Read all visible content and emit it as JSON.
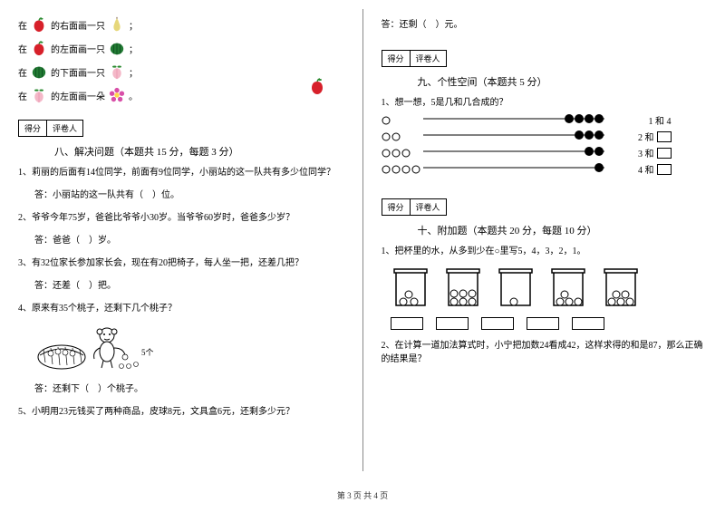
{
  "footer": "第 3 页 共 4 页",
  "scorebox": {
    "c1": "得分",
    "c2": "评卷人"
  },
  "leftCol": {
    "draw": {
      "prefix": "在",
      "suffix1": "的右面画一只",
      "suffix2": "的左面画一只",
      "suffix3": "的下面画一只",
      "suffix4": "的左面画一朵",
      "semicolon": "；",
      "period": "。"
    },
    "sec8": {
      "title": "八、解决问题（本题共 15 分，每题 3 分）",
      "q1": "1、莉丽的后面有14位同学，前面有9位同学，小丽站的这一队共有多少位同学？",
      "a1": "答：小丽站的这一队共有（　）位。",
      "q2": "2、爷爷今年75岁，爸爸比爷爷小30岁。当爷爷60岁时，爸爸多少岁？",
      "a2": "答：爸爸（　）岁。",
      "q3": "3、有32位家长参加家长会，现在有20把椅子，每人坐一把，还差几把？",
      "a3": "答：还差（　）把。",
      "q4": "4、原来有35个桃子，还剩下几个桃子？",
      "a4": "答：还剩下（　）个桃子。",
      "q5": "5、小明用23元钱买了两种商品，皮球8元，文具盒6元，还剩多少元？",
      "eat_label": "5个"
    }
  },
  "rightCol": {
    "topAns": "答：还剩（　）元。",
    "sec9": {
      "title": "九、个性空间（本题共 5 分）",
      "q1": "1、想一想，5是几和几合成的？",
      "rows": [
        {
          "open": 1,
          "filled": 4,
          "label": "1 和 4"
        },
        {
          "open": 2,
          "filled": 3,
          "label": "2 和"
        },
        {
          "open": 3,
          "filled": 2,
          "label": "3 和"
        },
        {
          "open": 4,
          "filled": 1,
          "label": "4 和"
        }
      ]
    },
    "sec10": {
      "title": "十、附加题（本题共 20 分，每题 10 分）",
      "q1": "1、把杯里的水，从多到少在○里写5，4，3，2，1。",
      "beakers": [
        {
          "balls": 3
        },
        {
          "balls": 6
        },
        {
          "balls": 1
        },
        {
          "balls": 4
        },
        {
          "balls": 5
        }
      ],
      "q2": "2、在计算一道加法算式时，小宁把加数24看成42，这样求得的和是87，那么正确的结果是？"
    }
  },
  "colors": {
    "apple": "#d7202a",
    "leaf": "#2a8a2f",
    "pear": "#e6d77a",
    "watermelon": "#227a33",
    "peach": "#f4b8c8",
    "flower": "#d84fa8",
    "black": "#000000",
    "white": "#ffffff"
  }
}
